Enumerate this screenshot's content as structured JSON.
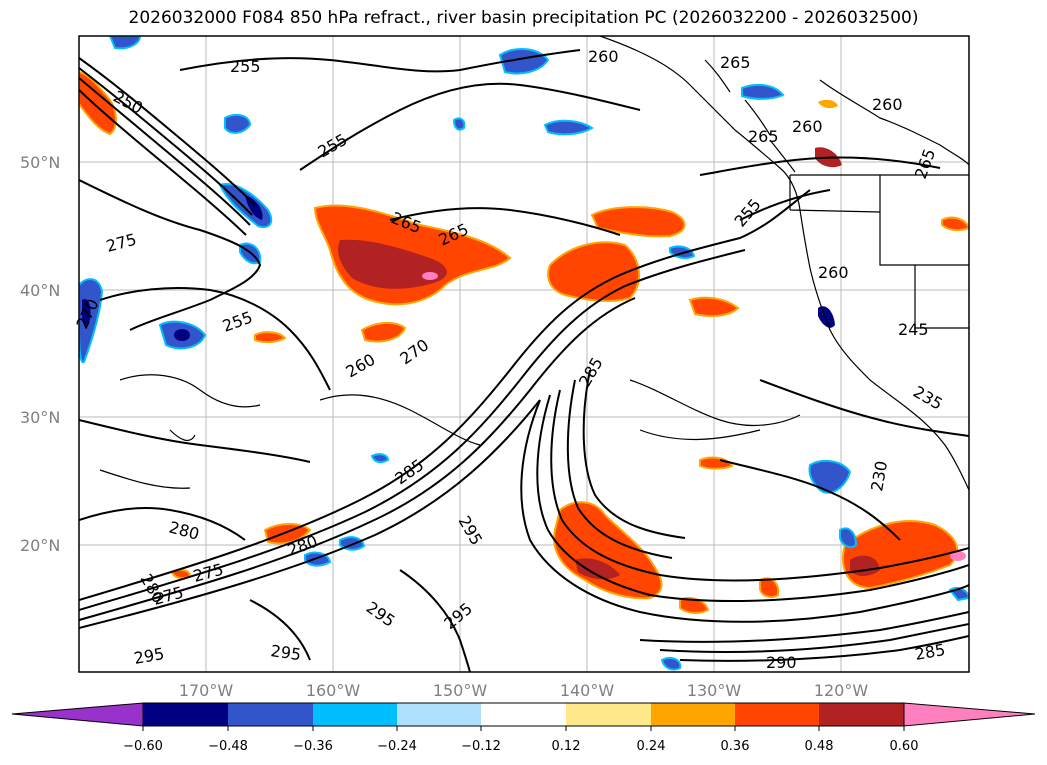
{
  "title": "2026032000 F084 850 hPa refract., river basin precipitation PC (2026032200 - 2026032500)",
  "map": {
    "region": "North-East Pacific",
    "lat_labels": [
      "50°N",
      "40°N",
      "30°N",
      "20°N"
    ],
    "lon_labels": [
      "170°W",
      "160°W",
      "150°W",
      "140°W",
      "130°W",
      "120°W"
    ],
    "contour_labels": [
      "250",
      "255",
      "255",
      "255",
      "260",
      "260",
      "260",
      "265",
      "265",
      "265",
      "265",
      "270",
      "270",
      "275",
      "275",
      "280",
      "280",
      "285",
      "285",
      "285",
      "290",
      "295",
      "295",
      "295",
      "295",
      "260",
      "255",
      "245",
      "235",
      "230",
      "260",
      "265",
      "270",
      "275",
      "280",
      "290"
    ],
    "shading_colors": {
      "strong_negative": "#000080",
      "negative": "#3355cc",
      "weak_negative": "#00bfff",
      "very_weak_negative": "#b0e0ff",
      "very_weak_positive": "#ffe98a",
      "weak_positive": "#ffa500",
      "positive": "#ff4500",
      "strong_positive": "#b22222",
      "very_strong_positive": "#ff7fbf"
    }
  },
  "colorbar": {
    "ticks": [
      "−0.60",
      "−0.48",
      "−0.36",
      "−0.24",
      "−0.12",
      "0.12",
      "0.24",
      "0.36",
      "0.48",
      "0.60"
    ],
    "colors": [
      "#9932cc",
      "#000080",
      "#3355cc",
      "#00bfff",
      "#b0e0ff",
      "#ffffff",
      "#ffe98a",
      "#ffa500",
      "#ff4500",
      "#b22222",
      "#ff7fbf"
    ]
  }
}
